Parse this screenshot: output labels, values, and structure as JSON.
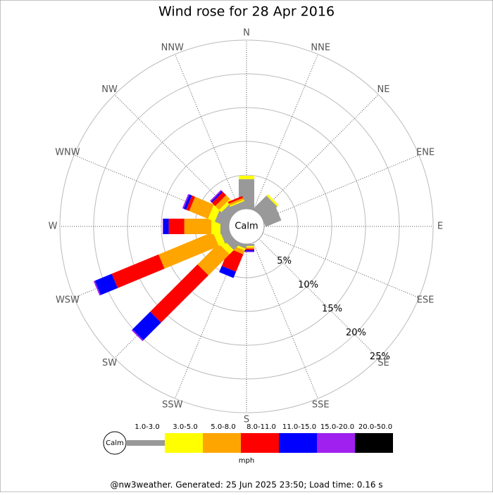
{
  "chart_data": {
    "type": "windrose",
    "title": "Wind rose for 28 Apr 2016",
    "categories": [
      "N",
      "NNE",
      "NE",
      "ENE",
      "E",
      "ESE",
      "SE",
      "SSE",
      "S",
      "SSW",
      "SW",
      "WSW",
      "W",
      "WNW",
      "NW",
      "NNW"
    ],
    "center_label": "Calm",
    "rlim": [
      0,
      25
    ],
    "rticks": [
      {
        "value": 5,
        "label": "5%"
      },
      {
        "value": 10,
        "label": "10%"
      },
      {
        "value": 15,
        "label": "15%"
      },
      {
        "value": 20,
        "label": "20%"
      },
      {
        "value": 25,
        "label": "25%"
      }
    ],
    "legend_unit": "mph",
    "series": [
      {
        "name": "1.0-3.0",
        "color": "#999999",
        "values": [
          4.4,
          0.3,
          2.7,
          2.5,
          0,
          0,
          0,
          0,
          0.3,
          0.5,
          1.2,
          1.3,
          1.25,
          2.0,
          1.5,
          1.0
        ]
      },
      {
        "name": "3.0-5.0",
        "color": "#ffff00",
        "values": [
          0.5,
          0,
          0.3,
          0,
          0,
          0,
          0,
          0,
          0.2,
          0.3,
          0.9,
          1.0,
          1.35,
          1.1,
          0.5,
          0.2
        ]
      },
      {
        "name": "5.0-8.0",
        "color": "#ffa500",
        "values": [
          0,
          0,
          0,
          0,
          0,
          0,
          0,
          0,
          0.2,
          0.6,
          4.4,
          8.7,
          4.0,
          3.0,
          0.8,
          0.3
        ]
      },
      {
        "name": "8.0-11.0",
        "color": "#ff0000",
        "values": [
          0,
          0,
          0,
          0,
          0,
          0,
          0,
          0,
          0.2,
          2.8,
          9.9,
          7.5,
          2.3,
          0.5,
          0.7,
          0.3
        ]
      },
      {
        "name": "11.0-15.0",
        "color": "#0000ff",
        "values": [
          0,
          0,
          0,
          0,
          0,
          0,
          0,
          0,
          0.2,
          1.0,
          3.7,
          2.7,
          0.8,
          0.4,
          0.2,
          0
        ]
      },
      {
        "name": "15.0-20.0",
        "color": "#a020f0",
        "values": [
          0,
          0,
          0,
          0,
          0,
          0,
          0,
          0,
          0.1,
          0,
          0.2,
          0.2,
          0.1,
          0.2,
          0.2,
          0
        ]
      },
      {
        "name": "20.0-50.0",
        "color": "#000000",
        "values": [
          0,
          0,
          0,
          0,
          0,
          0,
          0,
          0,
          0,
          0,
          0,
          0,
          0,
          0,
          0,
          0
        ]
      }
    ],
    "footer": "@nw3weather. Generated: 25 Jun 2025 23:50; Load time: 0.16 s"
  }
}
